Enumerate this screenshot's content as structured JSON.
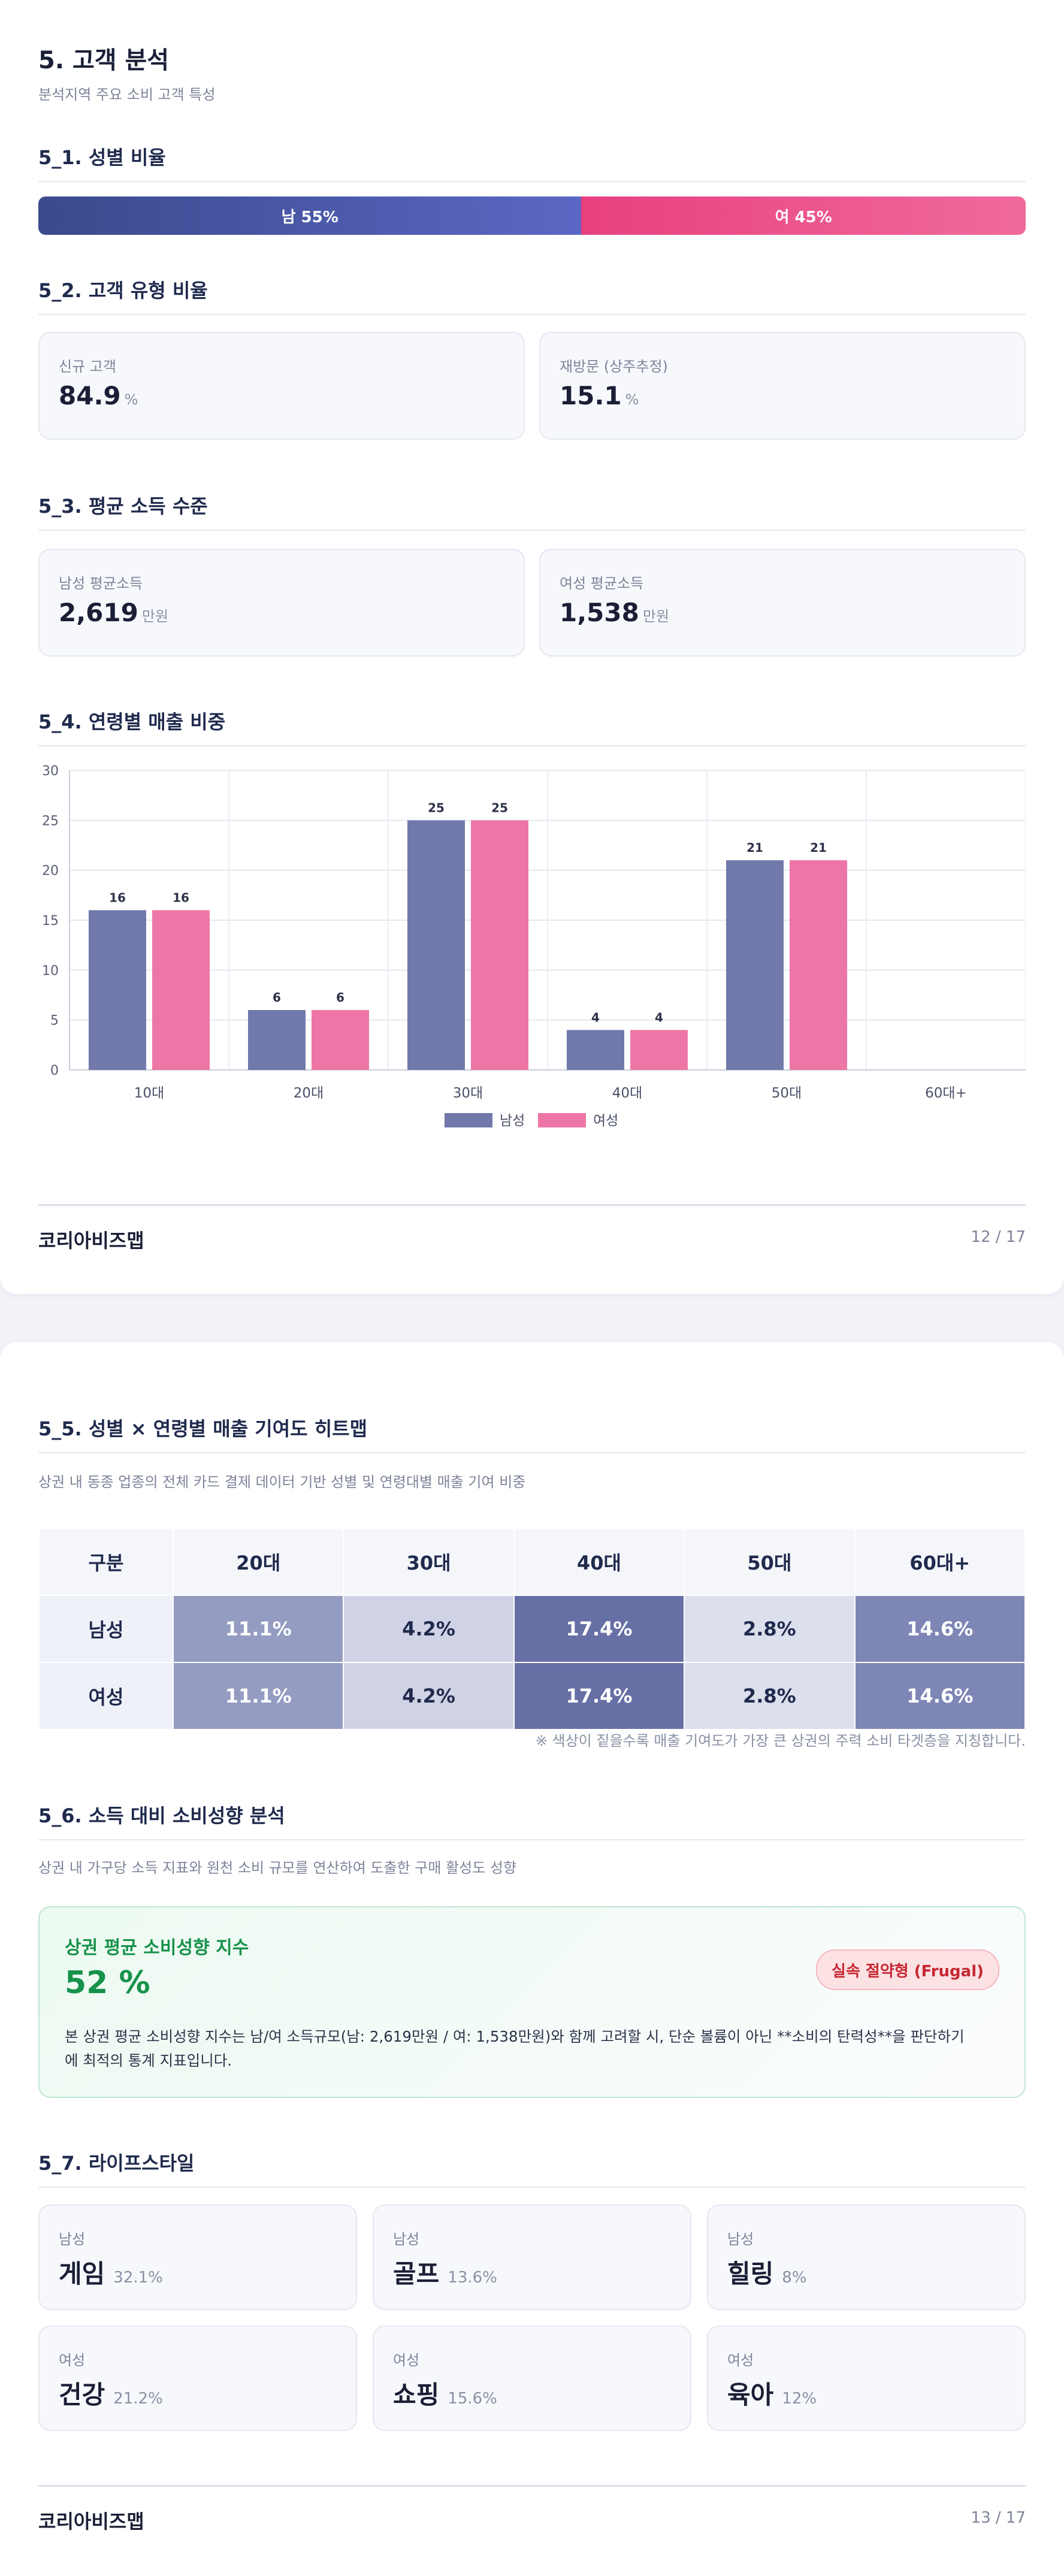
{
  "page1": {
    "title": "5. 고객 분석",
    "subtitle": "분석지역 주요 소비 고객 특성",
    "gender_section": {
      "heading": "5_1. 성별 비율",
      "male_label": "남 55%",
      "female_label": "여 45%",
      "male_share": 55,
      "female_share": 45,
      "male_color": "#4a57a8",
      "female_color": "#ec4f8e"
    },
    "customer_type": {
      "heading": "5_2. 고객 유형 비율",
      "cards": [
        {
          "label": "신규 고객",
          "value": "84.9",
          "unit": "%"
        },
        {
          "label": "재방문 (상주추정)",
          "value": "15.1",
          "unit": "%"
        }
      ]
    },
    "income": {
      "heading": "5_3. 평균 소득 수준",
      "cards": [
        {
          "label": "남성 평균소득",
          "value": "2,619",
          "unit": "만원"
        },
        {
          "label": "여성 평균소득",
          "value": "1,538",
          "unit": "만원"
        }
      ]
    },
    "age_sales": {
      "heading": "5_4. 연령별 매출 비중"
    },
    "footer": {
      "brand": "코리아비즈맵",
      "page": "12 / 17"
    }
  },
  "chart_data": {
    "type": "bar",
    "categories": [
      "10대",
      "20대",
      "30대",
      "40대",
      "50대",
      "60대+"
    ],
    "series": [
      {
        "name": "남성",
        "values": [
          16,
          6,
          25,
          4,
          21,
          0
        ],
        "color": "#7178aa"
      },
      {
        "name": "여성",
        "values": [
          16,
          6,
          25,
          4,
          21,
          0
        ],
        "color": "#ee76a6"
      }
    ],
    "data_labels": [
      [
        "16",
        "6",
        "25",
        "4",
        "21",
        ""
      ],
      [
        "16",
        "6",
        "25",
        "4",
        "21",
        ""
      ]
    ],
    "ylim": [
      0,
      30
    ],
    "yticks": [
      "0",
      "5",
      "10",
      "15",
      "20",
      "25",
      "30"
    ],
    "grid": true,
    "legend": "bottom-center"
  },
  "page2": {
    "heatmap": {
      "heading": "5_5. 성별 × 연령별 매출 기여도 히트맵",
      "subtitle": "상권 내 동종 업종의 전체 카드 결제 데이터 기반 성별 및 연령대별 매출 기여 비중",
      "columns": [
        "구분",
        "20대",
        "30대",
        "40대",
        "50대",
        "60대+"
      ],
      "rows": [
        {
          "label": "남성",
          "cells": [
            "11.1%",
            "4.2%",
            "17.4%",
            "2.8%",
            "14.6%"
          ]
        },
        {
          "label": "여성",
          "cells": [
            "11.1%",
            "4.2%",
            "17.4%",
            "2.8%",
            "14.6%"
          ]
        }
      ],
      "cell_colors": [
        "#949cc2",
        "#d0d3e5",
        "#6770a5",
        "#dcdfec",
        "#7e86b5"
      ],
      "cell_text_colors": [
        "#ffffff",
        "#1f2a4d",
        "#ffffff",
        "#1f2a4d",
        "#ffffff"
      ],
      "note": "※ 색상이 짙을수록 매출 기여도가 가장 큰 상권의 주력 소비 타겟층을 지칭합니다."
    },
    "spending": {
      "heading": "5_6. 소득 대비 소비성향 분석",
      "subtitle": "상권 내 가구당 소득 지표와 원천 소비 규모를 연산하여 도출한 구매 활성도 성향",
      "box_title": "상권 평균 소비성향 지수",
      "index_value": "52 %",
      "badge": "실속 절약형 (Frugal)",
      "description_line1": "본 상권 평균 소비성향 지수는 남/여 소득규모(남: 2,619만원 / 여: 1,538만원)와 함께 고려할 시, 단순 볼륨이 아닌 **소비의 탄력성**을 판단하기",
      "description_line2": "에 최적의 통계 지표입니다."
    },
    "lifestyle": {
      "heading": "5_7. 라이프스타일",
      "cards": [
        {
          "gender": "남성",
          "name": "게임",
          "pct": "32.1%"
        },
        {
          "gender": "남성",
          "name": "골프",
          "pct": "13.6%"
        },
        {
          "gender": "남성",
          "name": "힐링",
          "pct": "8%"
        },
        {
          "gender": "여성",
          "name": "건강",
          "pct": "21.2%"
        },
        {
          "gender": "여성",
          "name": "쇼핑",
          "pct": "15.6%"
        },
        {
          "gender": "여성",
          "name": "육아",
          "pct": "12%"
        }
      ]
    },
    "footer": {
      "brand": "코리아비즈맵",
      "page": "13 / 17"
    }
  }
}
